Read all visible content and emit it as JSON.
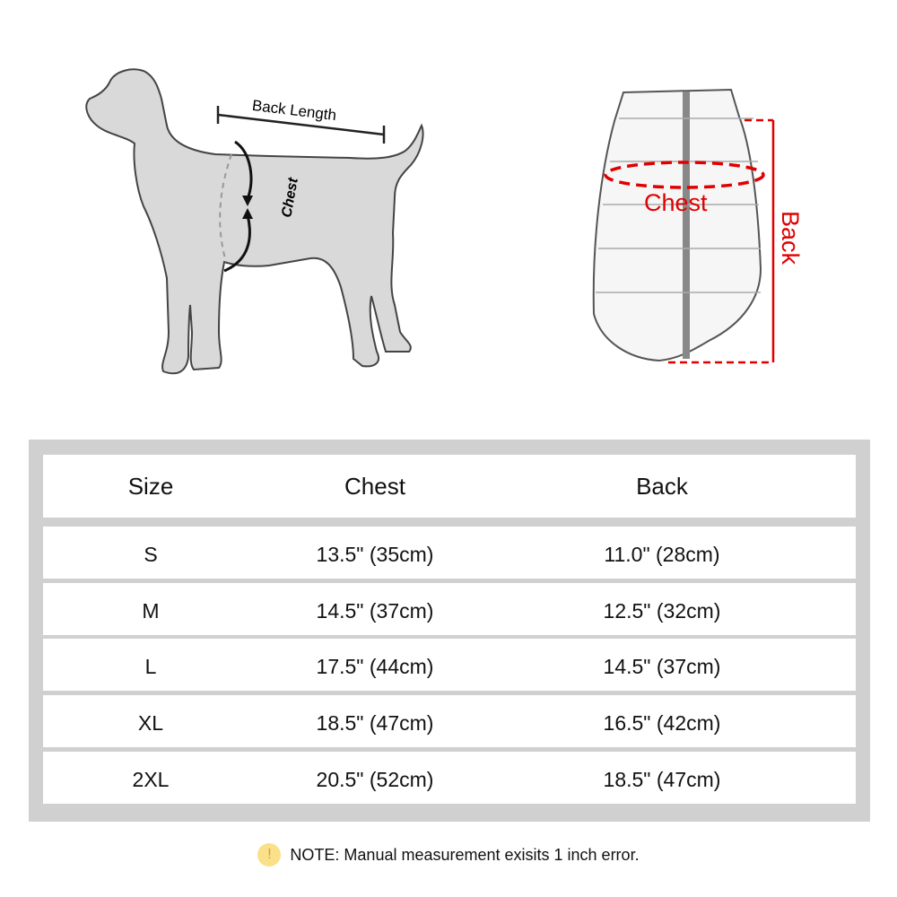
{
  "illustrations": {
    "dog": {
      "back_length_label": "Back Length",
      "chest_label": "Chest"
    },
    "vest": {
      "chest_label": "Chest",
      "back_label": "Back",
      "marker_color": "#e00000"
    }
  },
  "table": {
    "headers": [
      "Size",
      "Chest",
      "Back"
    ],
    "rows": [
      {
        "size": "S",
        "chest": "13.5\" (35cm)",
        "back": "11.0\" (28cm)"
      },
      {
        "size": "M",
        "chest": "14.5\" (37cm)",
        "back": "12.5\" (32cm)"
      },
      {
        "size": "L",
        "chest": "17.5\" (44cm)",
        "back": "14.5\" (37cm)"
      },
      {
        "size": "XL",
        "chest": "18.5\" (47cm)",
        "back": "16.5\" (42cm)"
      },
      {
        "size": "2XL",
        "chest": "20.5\" (52cm)",
        "back": "18.5\" (47cm)"
      }
    ]
  },
  "note": {
    "icon": "exclamation-icon",
    "icon_glyph": "!",
    "text": "NOTE: Manual measurement exisits 1 inch error."
  }
}
